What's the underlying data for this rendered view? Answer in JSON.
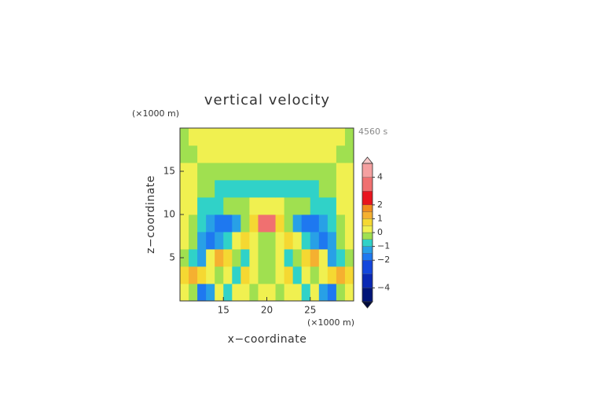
{
  "chart_data": {
    "type": "contour",
    "title": "vertical velocity",
    "x_label": "x−coordinate",
    "y_label": "z−coordinate",
    "x_unit": "(×1000 m)",
    "y_unit": "(×1000 m)",
    "time_label": "4560 s",
    "xlim": [
      10,
      30
    ],
    "ylim": [
      0,
      20
    ],
    "xticks": [
      15,
      20,
      25
    ],
    "yticks": [
      5,
      10,
      15
    ],
    "x": [
      10.5,
      11.5,
      12.5,
      13.5,
      14.5,
      15.5,
      16.5,
      17.5,
      18.5,
      19.5,
      20.5,
      21.5,
      22.5,
      23.5,
      24.5,
      25.5,
      26.5,
      27.5,
      28.5,
      29.5
    ],
    "y": [
      1,
      3,
      5,
      7,
      9,
      11,
      13,
      15,
      17,
      19
    ],
    "z": [
      [
        0.3,
        -0.3,
        -1.7,
        -1.2,
        0.3,
        -0.8,
        0.3,
        0.3,
        -0.3,
        0.3,
        0.3,
        -0.3,
        0.3,
        0.3,
        -0.8,
        0.3,
        -1.2,
        -1.7,
        -0.3,
        0.3
      ],
      [
        0.8,
        1.3,
        0.8,
        0.3,
        -0.3,
        0.3,
        -0.6,
        0.8,
        0.3,
        -0.3,
        -0.3,
        0.3,
        0.8,
        -0.6,
        0.3,
        -0.3,
        0.3,
        0.8,
        1.3,
        0.8
      ],
      [
        -0.3,
        -0.8,
        -1.2,
        0.3,
        1.2,
        0.8,
        -0.3,
        -0.8,
        0.3,
        -0.3,
        -0.3,
        0.3,
        -0.8,
        -0.3,
        0.8,
        1.2,
        0.3,
        -1.2,
        -0.8,
        -0.3
      ],
      [
        0.3,
        -0.3,
        -1.2,
        -1.7,
        -1.2,
        -0.6,
        0.3,
        0.7,
        0.3,
        -0.3,
        -0.3,
        0.3,
        0.7,
        0.3,
        -0.6,
        -1.2,
        -1.7,
        -1.2,
        -0.3,
        0.3
      ],
      [
        0.3,
        -0.3,
        -0.8,
        -1.2,
        -1.7,
        -1.7,
        -1.2,
        -0.3,
        0.8,
        3.5,
        3.5,
        0.8,
        -0.3,
        -1.2,
        -1.7,
        -1.7,
        -1.2,
        -0.8,
        -0.3,
        0.3
      ],
      [
        0.2,
        0.2,
        -0.8,
        -0.8,
        -0.8,
        -0.3,
        -0.3,
        -0.3,
        0.3,
        0.3,
        0.3,
        0.3,
        -0.3,
        -0.3,
        -0.3,
        -0.8,
        -0.8,
        -0.8,
        0.2,
        0.2
      ],
      [
        0.3,
        0.3,
        -0.3,
        -0.3,
        -0.8,
        -0.8,
        -0.8,
        -0.8,
        -0.8,
        -0.8,
        -0.8,
        -0.8,
        -0.8,
        -0.8,
        -0.8,
        -0.8,
        -0.3,
        -0.3,
        0.3,
        0.3
      ],
      [
        0.3,
        0.2,
        -0.3,
        -0.3,
        -0.3,
        -0.3,
        -0.3,
        -0.3,
        -0.3,
        -0.3,
        -0.3,
        -0.3,
        -0.3,
        -0.3,
        -0.3,
        -0.3,
        -0.3,
        -0.3,
        0.2,
        0.3
      ],
      [
        -0.3,
        -0.2,
        0.3,
        0.3,
        0.2,
        0.2,
        0.2,
        0.2,
        0.2,
        0.2,
        0.2,
        0.2,
        0.2,
        0.2,
        0.2,
        0.2,
        0.3,
        0.3,
        -0.2,
        -0.3
      ],
      [
        -0.3,
        0.3,
        0.3,
        0.3,
        0.3,
        0.3,
        0.3,
        0.3,
        0.3,
        0.3,
        0.3,
        0.3,
        0.3,
        0.3,
        0.3,
        0.3,
        0.3,
        0.3,
        0.3,
        -0.2
      ]
    ],
    "colorbar": {
      "levels": [
        -5,
        -4,
        -3,
        -2,
        -1.5,
        -1,
        -0.5,
        0,
        0.5,
        1,
        1.5,
        2,
        3,
        4,
        5
      ],
      "colors": [
        "#001478",
        "#0a28b4",
        "#1446dc",
        "#1e78f0",
        "#28a0e6",
        "#30d2c8",
        "#a0e050",
        "#f0f050",
        "#f5d832",
        "#f5b030",
        "#f08c1e",
        "#e8141e",
        "#f07070",
        "#f5a0a0"
      ],
      "under_color": "#000a3c",
      "over_color": "#f8c8c8",
      "ticks": [
        {
          "value": -4,
          "label": "−4"
        },
        {
          "value": -2,
          "label": "−2"
        },
        {
          "value": -1,
          "label": "−1"
        },
        0,
        1,
        2,
        4
      ]
    }
  }
}
